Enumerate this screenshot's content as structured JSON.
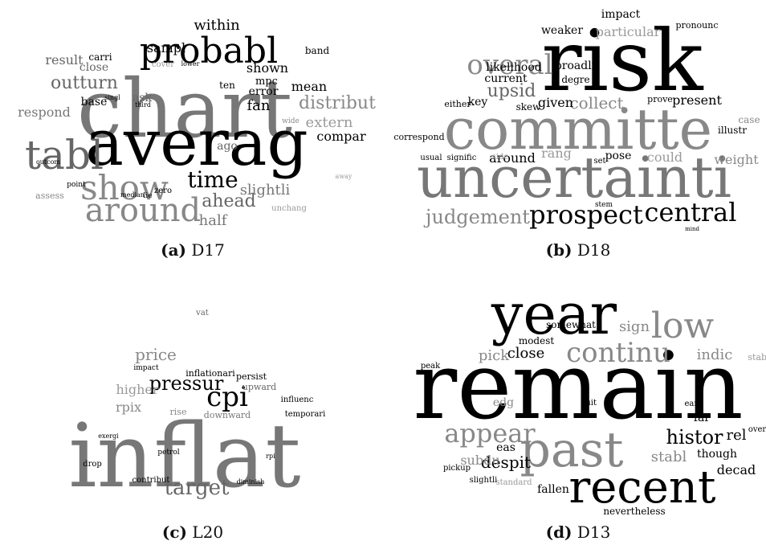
{
  "panels": [
    {
      "label": "(a)",
      "name": "D17",
      "words": [
        "chart",
        "averag",
        "probabl",
        "tabl",
        "show",
        "around",
        "time",
        "ahead",
        "half",
        "slightli",
        "outturn",
        "result",
        "respond",
        "distribut",
        "compar",
        "extern",
        "mean",
        "fan",
        "error",
        "shown",
        "within",
        "mpc",
        "sampl",
        "close",
        "carri",
        "base",
        "ask",
        "ago",
        "band",
        "ten",
        "unchang",
        "zero",
        "lie",
        "median",
        "assess",
        "point",
        "outcom",
        "singl",
        "third",
        "away",
        "wide",
        "lower",
        "cover"
      ]
    },
    {
      "label": "(b)",
      "name": "D18",
      "words": [
        "risk",
        "committe",
        "uncertainti",
        "prospect",
        "central",
        "judgement",
        "overal",
        "upsid",
        "current",
        "likelihood",
        "weaker",
        "impact",
        "particular",
        "collect",
        "given",
        "present",
        "weight",
        "around",
        "rang",
        "pose",
        "could",
        "key",
        "skew",
        "broadli",
        "degre",
        "case",
        "illustr",
        "prove",
        "pronounc",
        "either",
        "correspond",
        "usual",
        "signific",
        "side",
        "set",
        "stem",
        "mind"
      ]
    },
    {
      "label": "(c)",
      "name": "L20",
      "words": [
        "inflat",
        "target",
        "pressur",
        "cpi",
        "price",
        "higher",
        "rpix",
        "rise",
        "upward",
        "persist",
        "downward",
        "inflationari",
        "temporari",
        "influenc",
        "drop",
        "contribut",
        "petrol",
        "vat",
        "diminish",
        "rpi",
        "impact",
        "exergi"
      ]
    },
    {
      "label": "(d)",
      "name": "D13",
      "words": [
        "remain",
        "year",
        "past",
        "recent",
        "low",
        "continu",
        "appear",
        "histor",
        "stabl",
        "decad",
        "rel",
        "though",
        "despit",
        "subdu",
        "eas",
        "fallen",
        "nevertheless",
        "pickup",
        "slightli",
        "standard",
        "close",
        "pick",
        "sign",
        "somewhat",
        "modest",
        "indic",
        "far",
        "peak",
        "edg",
        "earli",
        "over",
        "stabi",
        "quit"
      ]
    }
  ]
}
